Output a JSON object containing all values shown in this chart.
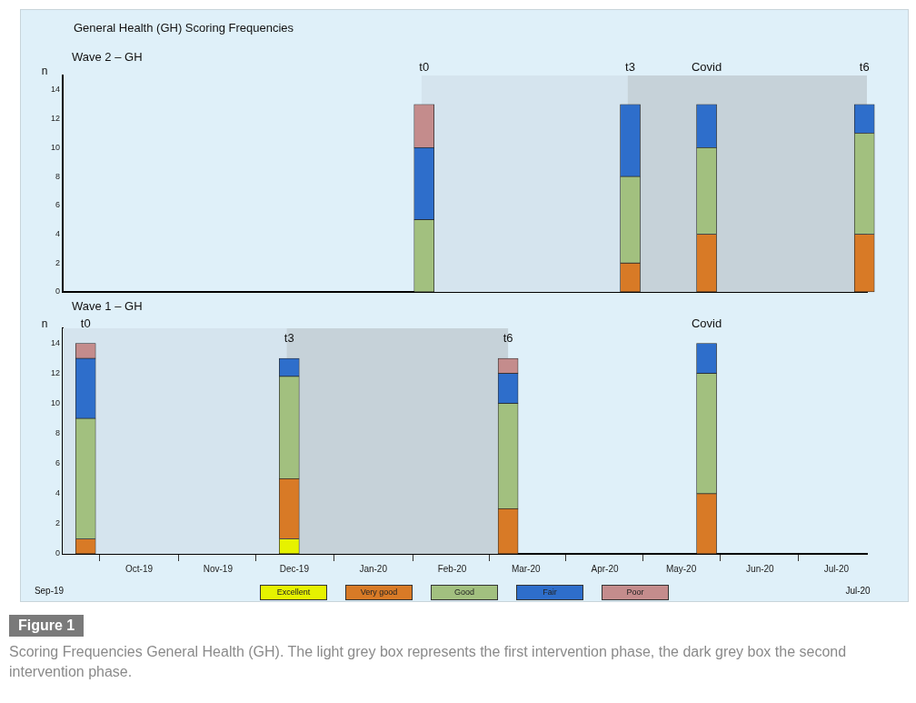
{
  "chart_data": [
    {
      "type": "bar",
      "title": "General Health (GH) Scoring Frequencies",
      "subtitle": "Wave 2 – GH",
      "ylabel": "n",
      "x": [
        "2020-01-21",
        "2020-04-11",
        "2020-05-11",
        "2020-07-12"
      ],
      "xlim": [
        "2019-09-01",
        "2020-07-13"
      ],
      "ylim": [
        0,
        15
      ],
      "yticks": [
        0,
        2,
        4,
        6,
        8,
        10,
        12,
        14
      ],
      "tick_labels": "y",
      "stacked": true,
      "grid": false,
      "bands": [
        {
          "axis": "x",
          "from": "2020-01-20",
          "to": "2020-04-10",
          "color": "#d5e4ee"
        },
        {
          "axis": "x",
          "from": "2020-04-10",
          "to": "2020-07-13",
          "color": "#c6d2d9"
        }
      ],
      "annotations": [
        {
          "text": "t0",
          "x": "2020-01-21",
          "y": 13
        },
        {
          "text": "t3",
          "x": "2020-04-11",
          "y": 13
        },
        {
          "text": "Covid",
          "x": "2020-05-11",
          "y": 13
        },
        {
          "text": "t6",
          "x": "2020-07-12",
          "y": 13
        }
      ],
      "series": [
        {
          "color": "#d87a26",
          "values": [
            0,
            2,
            4,
            4
          ]
        },
        {
          "color": "#a2c07f",
          "values": [
            5,
            6,
            6,
            7
          ]
        },
        {
          "color": "#2e6ecb",
          "values": [
            5,
            5,
            3,
            2
          ]
        },
        {
          "color": "#c48c8c",
          "values": [
            3,
            0,
            0,
            0
          ]
        }
      ]
    },
    {
      "type": "bar",
      "title": "Wave 1 – GH",
      "ylabel": "n",
      "x": [
        "2019-09-10",
        "2019-11-29",
        "2020-02-23",
        "2020-05-11"
      ],
      "xlim": [
        "2019-09-01",
        "2020-07-13"
      ],
      "xticks": [
        {
          "value": "2019-10-01",
          "label": "Oct-19"
        },
        {
          "value": "2019-11-01",
          "label": "Nov-19"
        },
        {
          "value": "2019-12-01",
          "label": "Dec-19"
        },
        {
          "value": "2020-01-01",
          "label": "Jan-20"
        },
        {
          "value": "2020-02-01",
          "label": "Feb-20"
        },
        {
          "value": "2020-03-01",
          "label": "Mar-20"
        },
        {
          "value": "2020-04-01",
          "label": "Apr-20"
        },
        {
          "value": "2020-05-01",
          "label": "May-20"
        },
        {
          "value": "2020-06-01",
          "label": "Jun-20"
        },
        {
          "value": "2020-07-01",
          "label": "Jul-20"
        }
      ],
      "ylim": [
        0,
        15
      ],
      "yticks": [
        0,
        2,
        4,
        6,
        8,
        10,
        12,
        14
      ],
      "stacked": true,
      "grid": false,
      "legend": "bottom",
      "bands": [
        {
          "axis": "x",
          "from": "2019-09-01",
          "to": "2019-11-28",
          "color": "#d5e4ee"
        },
        {
          "axis": "x",
          "from": "2019-11-28",
          "to": "2020-02-23",
          "color": "#c6d2d9"
        }
      ],
      "annotations": [
        {
          "text": "t0",
          "x": "2019-09-10",
          "y": 14
        },
        {
          "text": "t3",
          "x": "2019-11-29",
          "y": 13
        },
        {
          "text": "t6",
          "x": "2020-02-23",
          "y": 13
        },
        {
          "text": "Covid",
          "x": "2020-05-11",
          "y": 14
        },
        "Sep-19",
        "Jul-20",
        "Figure 1",
        "Scoring Frequencies General Health (GH). The light grey box represents the first intervention phase, the dark grey box the second intervention phase."
      ],
      "series": [
        {
          "name": "Excellent",
          "color": "#e6f200",
          "values": [
            0,
            1,
            0,
            0
          ]
        },
        {
          "name": "Very good",
          "color": "#d87a26",
          "values": [
            1,
            4,
            3,
            4
          ]
        },
        {
          "name": "Good",
          "color": "#a2c07f",
          "values": [
            8,
            6.8,
            7,
            8
          ]
        },
        {
          "name": "Fair",
          "color": "#2e6ecb",
          "values": [
            4,
            1.2,
            2,
            2
          ]
        },
        {
          "name": "Poor",
          "color": "#c48c8c",
          "values": [
            1,
            0,
            1,
            0
          ]
        }
      ]
    }
  ]
}
